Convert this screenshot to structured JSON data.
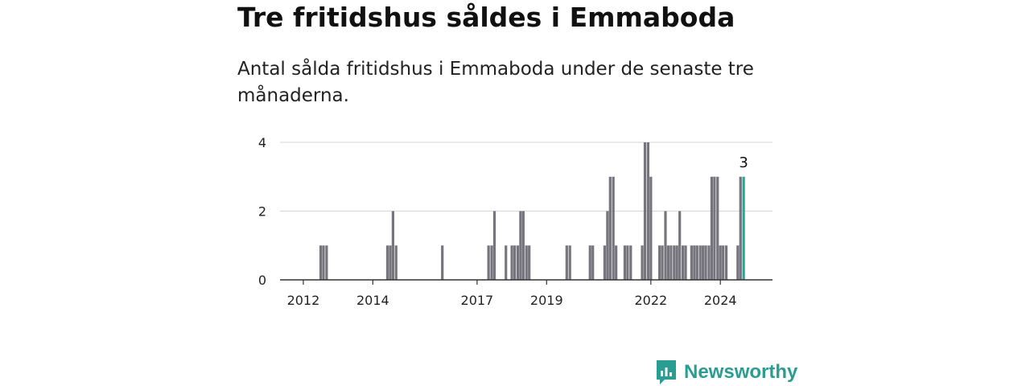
{
  "title": "Tre fritidshus såldes i Emmaboda",
  "subtitle": "Antal sålda fritidshus i Emmaboda under de senaste tre månaderna.",
  "brand": {
    "name": "Newsworthy",
    "icon": "newsworthy-logo-icon",
    "color": "#2a9d93"
  },
  "chart_data": {
    "type": "bar",
    "title": "Tre fritidshus såldes i Emmaboda",
    "xlabel": "",
    "ylabel": "",
    "ylim": [
      0,
      4
    ],
    "yticks": [
      0,
      2,
      4
    ],
    "xlim": [
      2011.33,
      2025.5
    ],
    "xticks": [
      {
        "value": 2012,
        "label": "2012"
      },
      {
        "value": 2014,
        "label": "2014"
      },
      {
        "value": 2017,
        "label": "2017"
      },
      {
        "value": 2019,
        "label": "2019"
      },
      {
        "value": 2022,
        "label": "2022"
      },
      {
        "value": 2024,
        "label": "2024"
      }
    ],
    "grid": true,
    "bar_color": "#76757d",
    "highlight_color": "#2ba59a",
    "highlight_label": "3",
    "x": [
      2012.5,
      2012.58,
      2012.67,
      2014.42,
      2014.5,
      2014.58,
      2014.67,
      2016.0,
      2017.33,
      2017.42,
      2017.5,
      2017.83,
      2018.0,
      2018.08,
      2018.17,
      2018.25,
      2018.33,
      2018.42,
      2018.5,
      2019.58,
      2019.67,
      2020.25,
      2020.33,
      2020.67,
      2020.75,
      2020.83,
      2020.92,
      2021.0,
      2021.25,
      2021.33,
      2021.42,
      2021.75,
      2021.83,
      2021.92,
      2022.0,
      2022.25,
      2022.33,
      2022.42,
      2022.5,
      2022.58,
      2022.67,
      2022.75,
      2022.83,
      2022.92,
      2023.0,
      2023.17,
      2023.25,
      2023.33,
      2023.42,
      2023.5,
      2023.58,
      2023.67,
      2023.75,
      2023.83,
      2023.92,
      2024.0,
      2024.08,
      2024.17,
      2024.5,
      2024.58,
      2024.67
    ],
    "values": [
      1,
      1,
      1,
      1,
      1,
      2,
      1,
      1,
      1,
      1,
      2,
      1,
      1,
      1,
      1,
      2,
      2,
      1,
      1,
      1,
      1,
      1,
      1,
      1,
      2,
      3,
      3,
      1,
      1,
      1,
      1,
      1,
      4,
      4,
      3,
      1,
      1,
      2,
      1,
      1,
      1,
      1,
      2,
      1,
      1,
      1,
      1,
      1,
      1,
      1,
      1,
      1,
      3,
      3,
      3,
      1,
      1,
      1,
      1,
      3,
      3
    ],
    "highlight_index": 60
  }
}
